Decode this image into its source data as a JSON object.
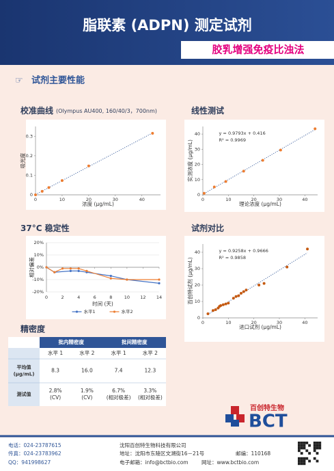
{
  "header": {
    "title": "脂联素 (ADPN) 测定试剂",
    "subtitle": "胶乳增强免疫比浊法"
  },
  "section": {
    "icon": "☞",
    "title": "试剂主要性能"
  },
  "chart_data": [
    {
      "type": "scatter",
      "title": "校准曲线",
      "subtitle": "(Olympus AU400, 160/40/3，700nm)",
      "x_label": "浓度 (μg/mL)",
      "y_label": "吸光度",
      "x": [
        0,
        2.5,
        5,
        10,
        20,
        44
      ],
      "values": [
        0,
        0.018,
        0.037,
        0.073,
        0.148,
        0.315
      ],
      "color": "#ed7d31",
      "trendline": true,
      "xlim": [
        0,
        47
      ],
      "ylim": [
        0,
        0.35
      ],
      "xticks": [
        0,
        10,
        20,
        30,
        40
      ],
      "yticks": [
        0,
        0.1,
        0.2,
        0.3
      ]
    },
    {
      "type": "scatter",
      "title": "线性测试",
      "x_label": "理论浓度 (μg/mL)",
      "y_label": "实测浓度 (μg/mL)",
      "x": [
        0.5,
        4.5,
        9,
        16,
        23.5,
        30.5,
        44
      ],
      "values": [
        1,
        5.2,
        8.8,
        15.6,
        22.7,
        29.5,
        43.5
      ],
      "color": "#ed7d31",
      "trendline": true,
      "annotations": [
        "y = 0.9793x + 0.416",
        "R² = 0.9969"
      ],
      "xlim": [
        0,
        45
      ],
      "ylim": [
        0,
        45
      ],
      "xticks": [
        0,
        10,
        20,
        30,
        40
      ],
      "yticks": [
        0,
        10,
        20,
        30,
        40
      ]
    },
    {
      "type": "line",
      "title": "37°C 稳定性",
      "x_label": "时间 (天)",
      "y_label": "相对偏差",
      "grid": true,
      "legend": "bottom",
      "series": [
        {
          "name": "水平1",
          "color": "#4472c4",
          "x": [
            0,
            1,
            3,
            4,
            5,
            8,
            10,
            14
          ],
          "values": [
            0,
            -4,
            -3,
            -3,
            -4,
            -7,
            -10,
            -13
          ]
        },
        {
          "name": "水平2",
          "color": "#ed7d31",
          "x": [
            0,
            1,
            2,
            3,
            4,
            5,
            8,
            10,
            14
          ],
          "values": [
            0,
            -4,
            -1,
            -1,
            -1,
            -3,
            -9,
            -10,
            -10
          ]
        }
      ],
      "xlim": [
        0,
        14
      ],
      "ylim": [
        -20,
        20
      ],
      "xticks": [
        0,
        2,
        4,
        6,
        8,
        10,
        12,
        14
      ],
      "yticks": [
        {
          "value": -20,
          "label": "-20%"
        },
        {
          "value": -10,
          "label": "-10%"
        },
        {
          "value": 0,
          "label": "0%"
        },
        {
          "value": 10,
          "label": "10%"
        },
        {
          "value": 20,
          "label": "20%"
        }
      ]
    },
    {
      "type": "scatter",
      "title": "试剂对比",
      "x_label": "进口试剂 (μg/mL)",
      "y_label": "百创特试剂 (μg/mL)",
      "x": [
        2,
        4,
        5,
        6,
        6.5,
        7,
        8,
        9,
        10,
        12,
        13,
        14,
        15,
        16,
        17,
        22,
        24,
        33,
        41
      ],
      "values": [
        2.5,
        4.5,
        5,
        6,
        7,
        7.5,
        8,
        8.5,
        9,
        12,
        13,
        13.5,
        15,
        16,
        17,
        20,
        21,
        31,
        42
      ],
      "color": "#c55a11",
      "trendline": true,
      "annotations": [
        "y = 0.9258x + 0.9666",
        "R² = 0.9858"
      ],
      "xlim": [
        0,
        45
      ],
      "ylim": [
        0,
        45
      ],
      "xticks": [
        0,
        10,
        20,
        30,
        40
      ],
      "yticks": [
        0,
        10,
        20,
        30,
        40
      ]
    }
  ],
  "precision": {
    "title": "精密度",
    "groups": [
      "批内精密度",
      "批间精密度"
    ],
    "levels": [
      "水平 1",
      "水平 2",
      "水平 1",
      "水平 2"
    ],
    "rows": [
      {
        "label": [
          "平均值",
          "(μg/mL)"
        ],
        "cells": [
          [
            "8.3"
          ],
          [
            "16.0"
          ],
          [
            "7.4"
          ],
          [
            "12.3"
          ]
        ]
      },
      {
        "label": [
          "测试值"
        ],
        "cells": [
          [
            "2.8%",
            "(CV)"
          ],
          [
            "1.9%",
            "(CV)"
          ],
          [
            "6.7%",
            "(相对极差)"
          ],
          [
            "3.3%",
            "(相对极差)"
          ]
        ]
      }
    ]
  },
  "logo": {
    "cn": "百创特生物",
    "en": "BCT"
  },
  "footer": {
    "phone": "电话：024-23787615",
    "fax": "传真：024-23783962",
    "qq": "QQ：941998627",
    "company": "沈阳百创特生物科技有限公司",
    "address": "地址：沈阳市东陵区文溯街16－21号",
    "postcode": "邮编：110168",
    "email": "电子邮箱：info@bctbio.com",
    "website": "网址：www.bctbio.com"
  }
}
